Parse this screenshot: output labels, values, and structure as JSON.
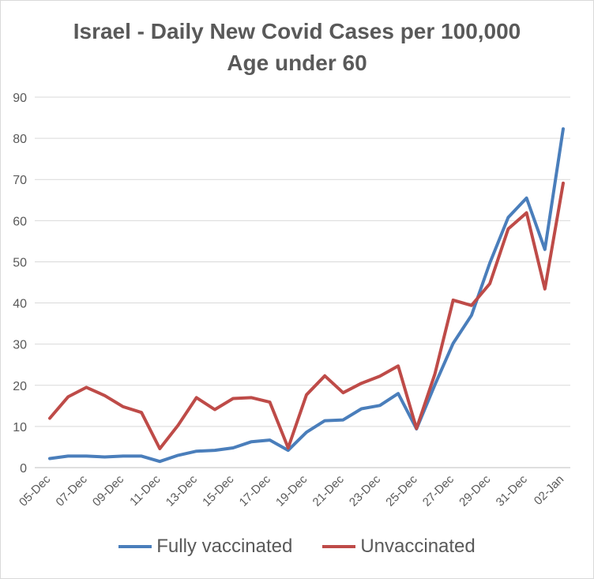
{
  "chart_data": {
    "type": "line",
    "title": "Israel - Daily New Covid Cases per 100,000",
    "subtitle": "Age under 60",
    "xlabel": "",
    "ylabel": "",
    "ylim": [
      0,
      90
    ],
    "yticks": [
      0,
      10,
      20,
      30,
      40,
      50,
      60,
      70,
      80,
      90
    ],
    "grid": true,
    "legend_position": "bottom",
    "x": [
      "05-Dec",
      "06-Dec",
      "07-Dec",
      "08-Dec",
      "09-Dec",
      "10-Dec",
      "11-Dec",
      "12-Dec",
      "13-Dec",
      "14-Dec",
      "15-Dec",
      "16-Dec",
      "17-Dec",
      "18-Dec",
      "19-Dec",
      "20-Dec",
      "21-Dec",
      "22-Dec",
      "23-Dec",
      "24-Dec",
      "25-Dec",
      "26-Dec",
      "27-Dec",
      "28-Dec",
      "29-Dec",
      "30-Dec",
      "31-Dec",
      "01-Jan",
      "02-Jan"
    ],
    "x_tick_labels": [
      "05-Dec",
      "07-Dec",
      "09-Dec",
      "11-Dec",
      "13-Dec",
      "15-Dec",
      "17-Dec",
      "19-Dec",
      "21-Dec",
      "23-Dec",
      "25-Dec",
      "27-Dec",
      "29-Dec",
      "31-Dec",
      "02-Jan"
    ],
    "series": [
      {
        "name": "Fully vaccinated",
        "color": "#4a7ebb",
        "values": [
          2.2,
          2.8,
          2.8,
          2.6,
          2.8,
          2.8,
          1.5,
          3.0,
          4.0,
          4.2,
          4.8,
          6.3,
          6.7,
          4.2,
          8.6,
          11.4,
          11.6,
          14.3,
          15.1,
          18.0,
          9.4,
          20.1,
          30.2,
          37.0,
          49.7,
          60.8,
          65.5,
          53.0,
          82.3
        ]
      },
      {
        "name": "Unvaccinated",
        "color": "#be4b48",
        "values": [
          12.0,
          17.2,
          19.5,
          17.5,
          14.8,
          13.4,
          4.6,
          10.3,
          17.0,
          14.1,
          16.8,
          17.0,
          15.9,
          4.8,
          17.7,
          22.3,
          18.2,
          20.5,
          22.2,
          24.7,
          9.5,
          22.7,
          40.7,
          39.4,
          44.7,
          58.0,
          61.9,
          43.4,
          69.1
        ]
      }
    ]
  }
}
